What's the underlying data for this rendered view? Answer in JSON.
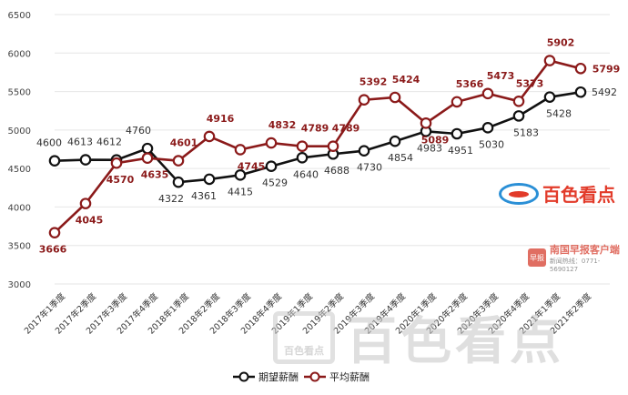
{
  "chart_data": {
    "type": "line",
    "title": "",
    "xlabel": "",
    "ylabel": "",
    "ylim": [
      3000,
      6500
    ],
    "yticks": [
      3000,
      3500,
      4000,
      4500,
      5000,
      5500,
      6000,
      6500
    ],
    "grid": true,
    "legend_position": "bottom",
    "categories": [
      "2017年1季度",
      "2017年2季度",
      "2017年3季度",
      "2017年4季度",
      "2018年1季度",
      "2018年2季度",
      "2018年3季度",
      "2018年4季度",
      "2019年1季度",
      "2019年2季度",
      "2019年3季度",
      "2019年4季度",
      "2020年1季度",
      "2020年2季度",
      "2020年3季度",
      "2020年4季度",
      "2021年1季度",
      "2021年2季度"
    ],
    "series": [
      {
        "name": "期望薪酬",
        "color": "#111111",
        "values": [
          4600,
          4613,
          4612,
          4760,
          4322,
          4361,
          4415,
          4529,
          4640,
          4688,
          4730,
          4854,
          4983,
          4951,
          5030,
          5183,
          5428,
          5492
        ]
      },
      {
        "name": "平均薪酬",
        "color": "#8b1a1a",
        "values": [
          3666,
          4045,
          4570,
          4635,
          4601,
          4916,
          4745,
          4832,
          4789,
          4789,
          5392,
          5424,
          5089,
          5366,
          5473,
          5373,
          5902,
          5799
        ]
      }
    ]
  },
  "watermarks": {
    "brand_small": "百色看点",
    "news_title": "南国早报客户端",
    "news_sub": "新闻热线：0771-5690127",
    "news_badge": "早报",
    "brand_big_box": "百色看点",
    "brand_big": "百色看点"
  }
}
